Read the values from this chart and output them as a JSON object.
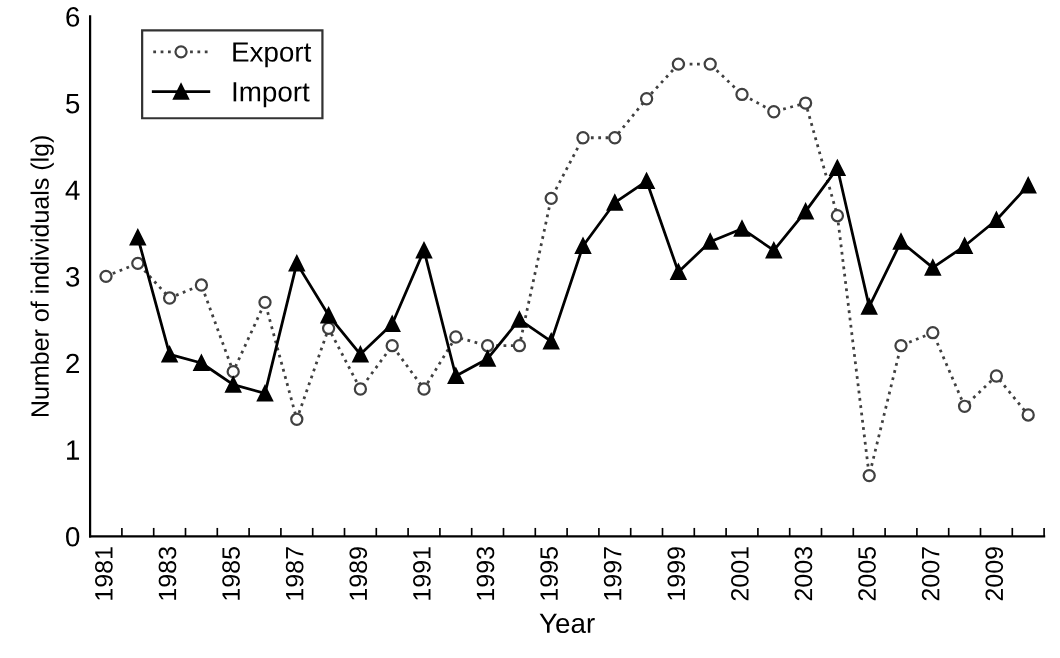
{
  "chart_data": {
    "type": "line",
    "xlabel": "Year",
    "ylabel": "Number of individuals (lg)",
    "categories": [
      "1981",
      null,
      "1983",
      null,
      "1985",
      null,
      "1987",
      null,
      "1989",
      null,
      "1991",
      null,
      "1993",
      null,
      "1995",
      null,
      "1997",
      null,
      "1999",
      null,
      "2001",
      null,
      "2003",
      null,
      "2005",
      null,
      "2007",
      null,
      "2009",
      null
    ],
    "series": [
      {
        "name": "Export",
        "color": "#404040",
        "marker": "circle",
        "line_style": "dotted",
        "values": [
          3.0,
          3.15,
          2.75,
          2.9,
          1.9,
          2.7,
          1.35,
          2.4,
          1.7,
          2.2,
          1.7,
          2.3,
          2.2,
          2.2,
          3.9,
          4.6,
          4.6,
          5.05,
          5.45,
          5.45,
          5.1,
          4.9,
          5.0,
          3.7,
          0.7,
          2.2,
          2.35,
          1.5,
          1.85,
          1.4
        ]
      },
      {
        "name": "Import",
        "color": "#000000",
        "marker": "triangle",
        "line_style": "solid",
        "values": [
          null,
          3.45,
          2.1,
          2.0,
          1.75,
          1.65,
          3.15,
          2.55,
          2.1,
          2.45,
          3.3,
          1.85,
          2.05,
          2.5,
          2.25,
          3.35,
          3.85,
          4.1,
          3.05,
          3.4,
          3.55,
          3.3,
          3.75,
          4.25,
          2.65,
          3.4,
          3.1,
          3.35,
          3.65,
          4.05
        ]
      }
    ],
    "ylim": [
      0,
      6
    ],
    "yticks": [
      0,
      1,
      2,
      3,
      4,
      5,
      6
    ],
    "grid": false,
    "legend": "top left"
  }
}
